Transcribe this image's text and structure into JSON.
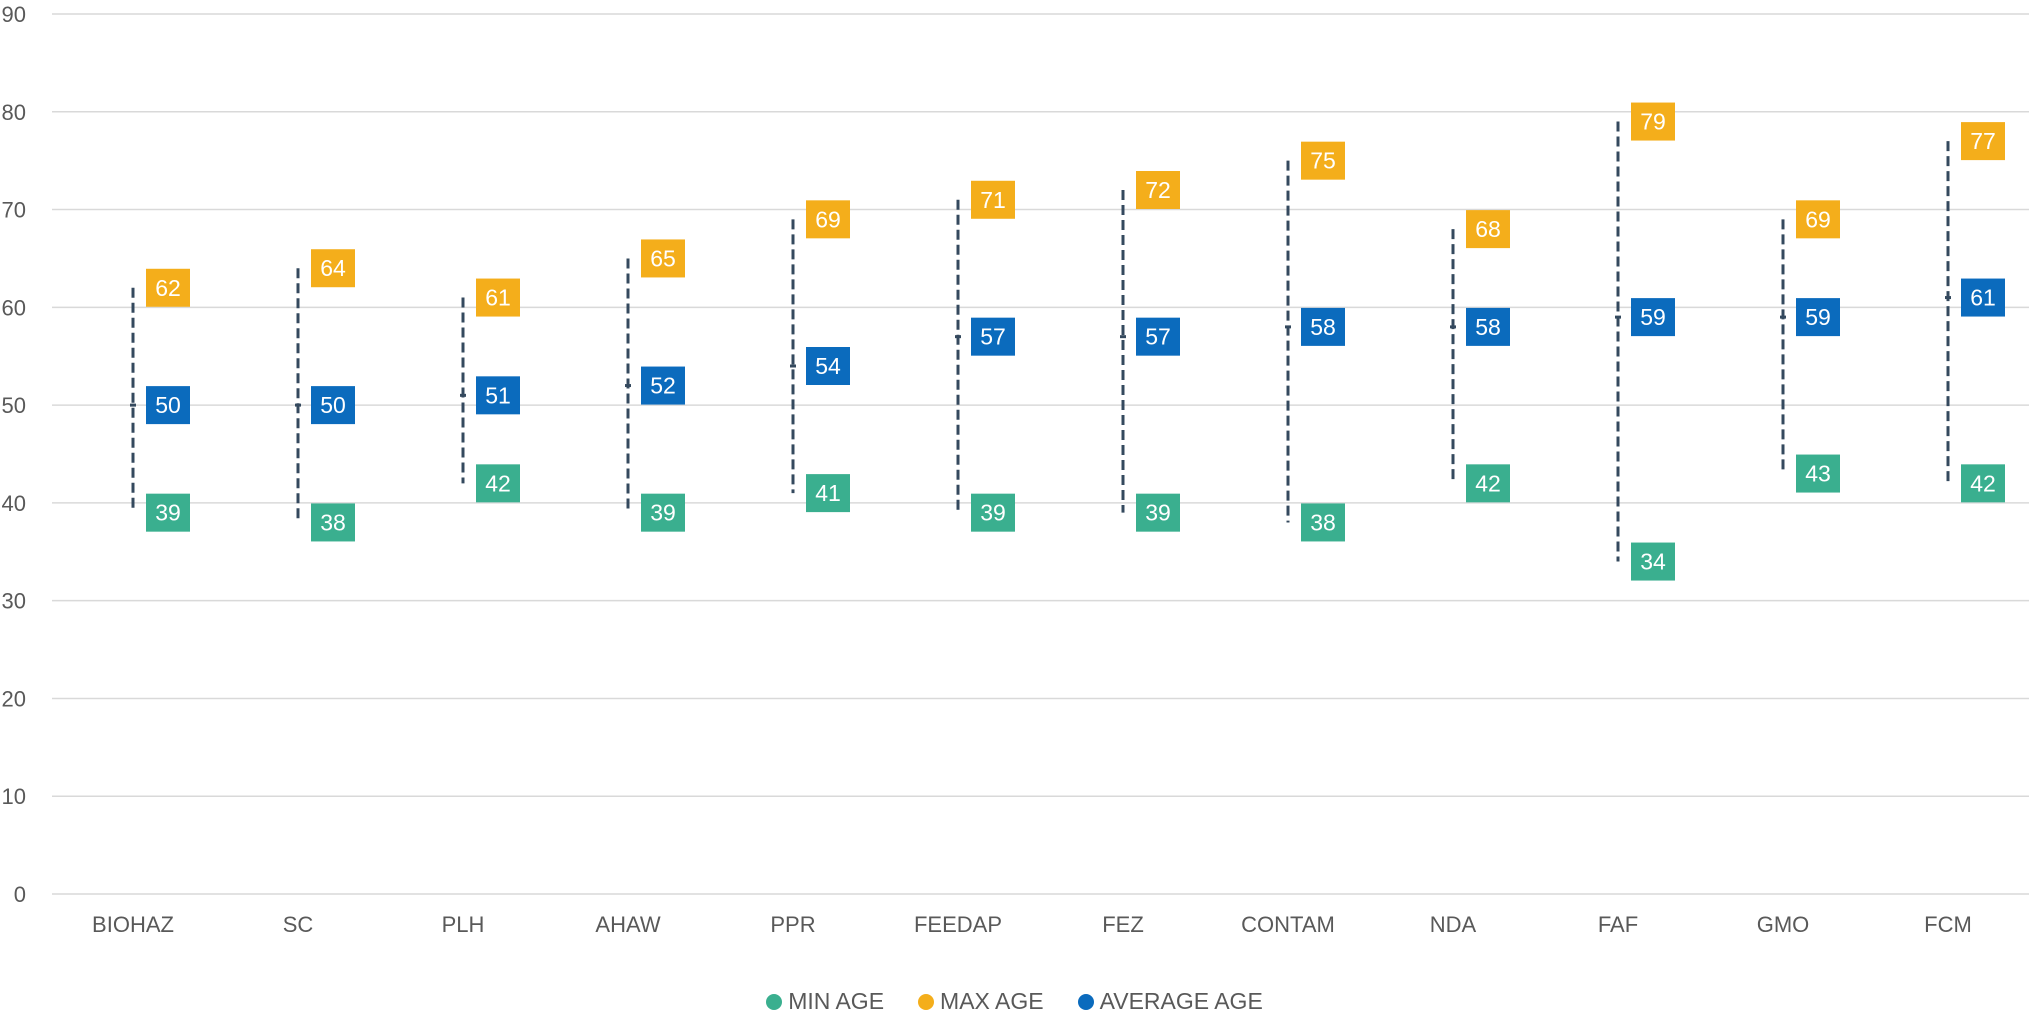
{
  "chart_data": {
    "type": "scatter",
    "categories": [
      "BIOHAZ",
      "SC",
      "PLH",
      "AHAW",
      "PPR",
      "FEEDAP",
      "FEZ",
      "CONTAM",
      "NDA",
      "FAF",
      "GMO",
      "FCM"
    ],
    "series": [
      {
        "name": "MIN AGE",
        "color": "#3aaf8f",
        "values": [
          39,
          38,
          42,
          39,
          41,
          39,
          39,
          38,
          42,
          34,
          43,
          42
        ]
      },
      {
        "name": "MAX AGE",
        "color": "#f4ae1b",
        "values": [
          62,
          64,
          61,
          65,
          69,
          71,
          72,
          75,
          68,
          79,
          69,
          77
        ]
      },
      {
        "name": "AVERAGE AGE",
        "color": "#0b6bbd",
        "values": [
          50,
          50,
          51,
          52,
          54,
          57,
          57,
          58,
          58,
          59,
          59,
          61
        ]
      }
    ],
    "yticks": [
      0,
      10,
      20,
      30,
      40,
      50,
      60,
      70,
      80,
      90
    ],
    "ylim": [
      0,
      90
    ],
    "grid": true,
    "legend": "bottom-center",
    "range_line_color": "#34495e",
    "axis_text_color": "#595959",
    "grid_color": "#d9d9d9"
  }
}
